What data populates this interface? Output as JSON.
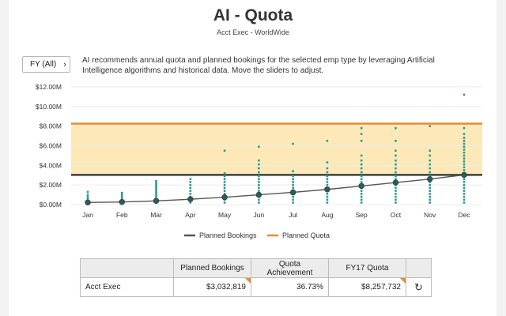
{
  "header": {
    "title": "AI - Quota",
    "subtitle": "Acct Exec - WorldWide"
  },
  "filter": {
    "label": "FY (All)",
    "icon": "chevron-right-icon"
  },
  "description": "AI recommends annual quota and planned bookings for the selected emp type by leveraging Artificial Intelligence algorithms and historical data. Move the sliders to adjust.",
  "chart_data": {
    "type": "line",
    "categories": [
      "Jan",
      "Feb",
      "Mar",
      "Apr",
      "May",
      "Jun",
      "Jul",
      "Aug",
      "Sep",
      "Oct",
      "Nov",
      "Dec"
    ],
    "ylim": [
      0,
      12
    ],
    "yticks": [
      {
        "v": 0,
        "label": "$0.00M"
      },
      {
        "v": 2,
        "label": "$2.00M"
      },
      {
        "v": 4,
        "label": "$4.00M"
      },
      {
        "v": 6,
        "label": "$6.00M"
      },
      {
        "v": 8,
        "label": "$8.00M"
      },
      {
        "v": 10,
        "label": "$10.00M"
      },
      {
        "v": 12,
        "label": "$12.00M"
      }
    ],
    "series": [
      {
        "name": "Planned Bookings",
        "color": "#555555",
        "values": [
          0.22,
          0.27,
          0.38,
          0.55,
          0.75,
          1.0,
          1.25,
          1.55,
          1.9,
          2.25,
          2.6,
          3.03
        ]
      }
    ],
    "band": {
      "low": 3.03,
      "high": 8.26,
      "color": "#fde9b8"
    },
    "quota_line": {
      "name": "Planned Quota",
      "value": 8.26,
      "color": "#f08a24"
    },
    "floor_line": {
      "value": 3.03,
      "color": "#3c3f4a"
    },
    "distribution_color": "#2a9d8f",
    "distribution": [
      [
        0.2,
        0.4,
        0.6,
        0.8,
        1.0,
        1.3
      ],
      [
        0.2,
        0.4,
        0.6,
        0.8,
        1.0,
        1.2
      ],
      [
        0.2,
        0.4,
        0.6,
        0.8,
        1.0,
        1.2,
        1.4,
        1.6,
        1.8,
        2.0,
        2.2,
        2.4
      ],
      [
        0.2,
        0.5,
        0.8,
        1.1,
        1.4,
        1.7,
        2.0,
        2.3,
        2.6
      ],
      [
        0.2,
        0.5,
        0.8,
        1.1,
        1.4,
        1.7,
        2.0,
        2.3,
        2.6,
        2.9,
        3.2,
        5.5
      ],
      [
        0.2,
        0.5,
        0.8,
        1.1,
        1.4,
        1.7,
        2.0,
        2.3,
        2.6,
        2.9,
        3.3,
        3.7,
        4.1,
        4.5,
        5.9
      ],
      [
        0.2,
        0.5,
        0.8,
        1.1,
        1.4,
        1.7,
        2.0,
        2.3,
        2.6,
        2.9,
        3.4,
        6.2
      ],
      [
        0.2,
        0.5,
        0.8,
        1.1,
        1.4,
        1.7,
        2.0,
        2.3,
        2.6,
        2.9,
        3.3,
        3.7,
        4.3,
        6.5
      ],
      [
        0.2,
        0.5,
        0.8,
        1.1,
        1.4,
        1.7,
        2.0,
        2.3,
        2.6,
        2.9,
        3.3,
        3.7,
        4.1,
        4.5,
        5.0,
        6.5,
        7.2,
        7.8
      ],
      [
        0.2,
        0.5,
        0.8,
        1.1,
        1.4,
        1.7,
        2.0,
        2.3,
        2.6,
        2.9,
        3.3,
        3.7,
        4.1,
        4.5,
        5.0,
        5.5,
        6.5,
        7.8
      ],
      [
        0.2,
        0.5,
        0.8,
        1.1,
        1.4,
        1.7,
        2.0,
        2.3,
        2.6,
        2.9,
        3.3,
        3.7,
        4.1,
        4.5,
        5.0,
        5.5,
        8.0
      ],
      [
        0.2,
        0.5,
        0.8,
        1.1,
        1.4,
        1.7,
        2.0,
        2.3,
        2.6,
        2.9,
        3.2,
        3.5,
        3.8,
        4.1,
        4.4,
        4.7,
        5.0,
        5.3,
        5.6,
        5.9,
        6.2,
        6.5,
        6.8,
        7.2,
        7.8,
        11.2
      ]
    ],
    "legend": [
      "Planned Bookings",
      "Planned Quota"
    ],
    "legend_position": "bottom"
  },
  "table": {
    "headers": [
      "",
      "Planned Bookings",
      "Quota Achievement",
      "FY17 Quota",
      ""
    ],
    "row": {
      "label": "Acct Exec",
      "planned_bookings": "$3,032,819",
      "quota_achievement": "36.73%",
      "fy17_quota": "$8,257,732",
      "action_icon": "refresh-icon"
    }
  }
}
